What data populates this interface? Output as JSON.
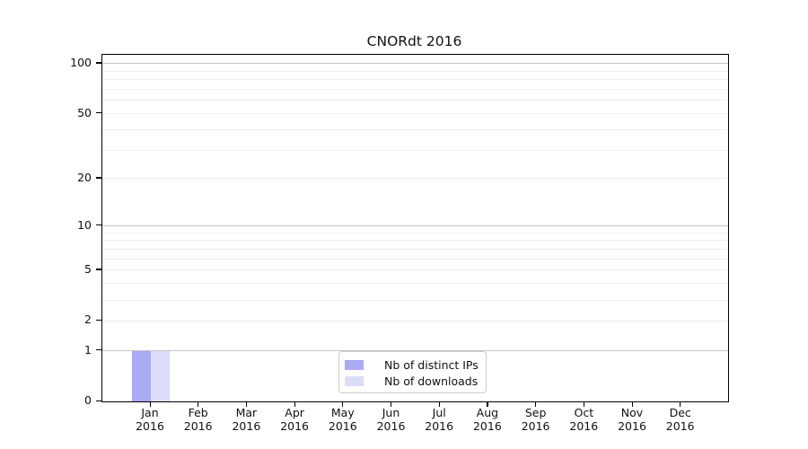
{
  "figure": {
    "title": "CNORdt 2016"
  },
  "chart_data": {
    "type": "bar",
    "title": "CNORdt 2016",
    "categories": [
      "Jan",
      "Feb",
      "Mar",
      "Apr",
      "May",
      "Jun",
      "Jul",
      "Aug",
      "Sep",
      "Oct",
      "Nov",
      "Dec"
    ],
    "category_year": "2016",
    "series": [
      {
        "name": "Nb of distinct IPs",
        "color": "#abaaf5",
        "values": [
          1,
          0,
          0,
          0,
          0,
          0,
          0,
          0,
          0,
          0,
          0,
          0
        ]
      },
      {
        "name": "Nb of downloads",
        "color": "#dddcf8",
        "values": [
          1,
          0,
          0,
          0,
          0,
          0,
          0,
          0,
          0,
          0,
          0,
          0
        ]
      }
    ],
    "xlabel": "",
    "ylabel": "",
    "y_axis": {
      "scale": "log10(value+1)",
      "tick_labels": [
        0,
        1,
        2,
        5,
        10,
        20,
        50,
        100
      ],
      "major_gridlines": [
        1,
        10,
        100
      ],
      "minor_gridlines": [
        2,
        3,
        4,
        5,
        6,
        7,
        8,
        9,
        20,
        30,
        40,
        50,
        60,
        70,
        80,
        90
      ],
      "ylim": [
        0,
        113
      ]
    },
    "legend": {
      "position": "bottom-center",
      "entries": [
        "Nb of distinct IPs",
        "Nb of downloads"
      ]
    },
    "grid": true
  },
  "colors": {
    "background": "#ffffff",
    "bar_distinct_ips": "#abaaf5",
    "bar_downloads": "#dddcf8",
    "major_gridline": "#c6c6c6",
    "minor_gridline": "#ededed",
    "axis": "#000000",
    "legend_border": "#cccccc",
    "text": "#111111"
  }
}
